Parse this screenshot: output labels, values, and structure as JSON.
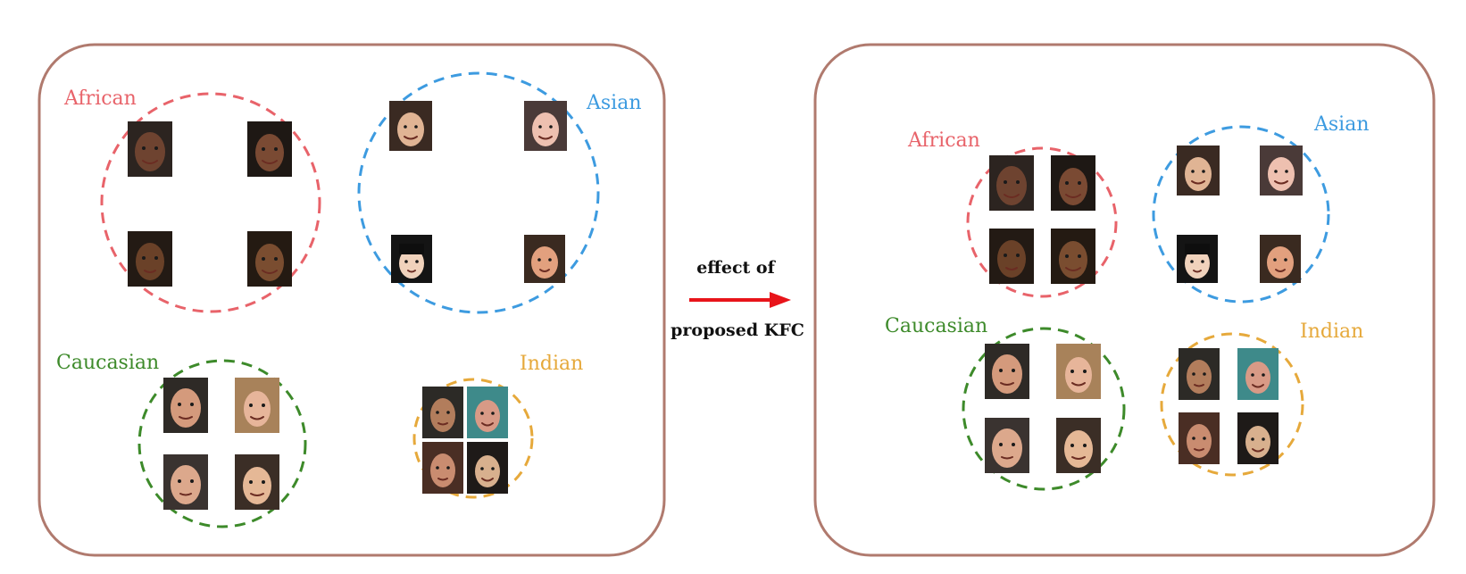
{
  "colors": {
    "panel_border": "#b07a6e",
    "african": "#e8636a",
    "asian": "#3d9be0",
    "caucasian": "#3d8a2a",
    "indian": "#e6a93b",
    "arrow": "#e8141a"
  },
  "groups": {
    "african": "African",
    "asian": "Asian",
    "caucasian": "Caucasian",
    "indian": "Indian"
  },
  "arrow": {
    "top_label": "effect of",
    "bottom_label": "proposed KFC"
  },
  "icons": {
    "face": "face-photo-icon",
    "arrow": "arrow-right-icon"
  }
}
